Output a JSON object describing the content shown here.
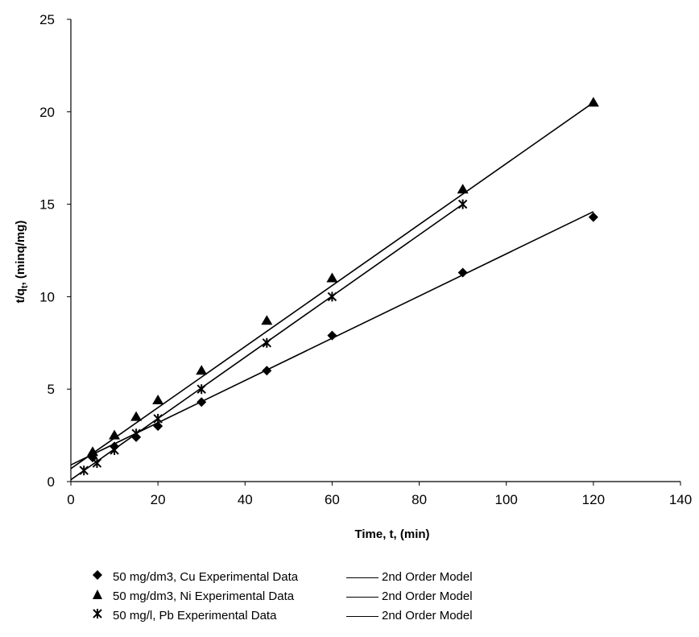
{
  "chart_data": {
    "type": "scatter",
    "xlabel": "Time, t, (min)",
    "ylabel": "t/q",
    "ylabel_sub": "t",
    "ylabel_rest": ", (minq/mg)",
    "xlim": [
      0,
      140
    ],
    "ylim": [
      0,
      25
    ],
    "xticks": [
      "0",
      "20",
      "40",
      "60",
      "80",
      "100",
      "120",
      "140"
    ],
    "yticks": [
      "0",
      "5",
      "10",
      "15",
      "20",
      "25"
    ],
    "grid": false,
    "legend_position": "bottom",
    "series": [
      {
        "name": "50 mg/dm3, Cu Experimental Data",
        "marker": "diamond",
        "x": [
          5,
          10,
          15,
          20,
          30,
          45,
          60,
          90,
          120
        ],
        "y": [
          1.3,
          1.9,
          2.4,
          3.0,
          4.3,
          6.0,
          7.9,
          11.3,
          14.3
        ],
        "model_name": "2nd Order Model",
        "model_x": [
          0,
          120
        ],
        "model_y": [
          0.9,
          14.6
        ]
      },
      {
        "name": "50 mg/dm3, Ni Experimental Data",
        "marker": "triangle",
        "x": [
          5,
          10,
          15,
          20,
          30,
          45,
          60,
          90,
          120
        ],
        "y": [
          1.6,
          2.5,
          3.5,
          4.4,
          6.0,
          8.7,
          11.0,
          15.8,
          20.5
        ],
        "model_name": "2nd Order Model",
        "model_x": [
          0,
          120
        ],
        "model_y": [
          0.7,
          20.5
        ]
      },
      {
        "name": "50 mg/l, Pb Experimental Data",
        "marker": "asterisk",
        "x": [
          3,
          6,
          10,
          15,
          20,
          30,
          45,
          60,
          90
        ],
        "y": [
          0.6,
          1.0,
          1.7,
          2.6,
          3.4,
          5.0,
          7.5,
          10.0,
          15.0
        ],
        "model_name": "2nd Order Model",
        "model_x": [
          0,
          90
        ],
        "model_y": [
          0.1,
          15.0
        ]
      }
    ]
  }
}
